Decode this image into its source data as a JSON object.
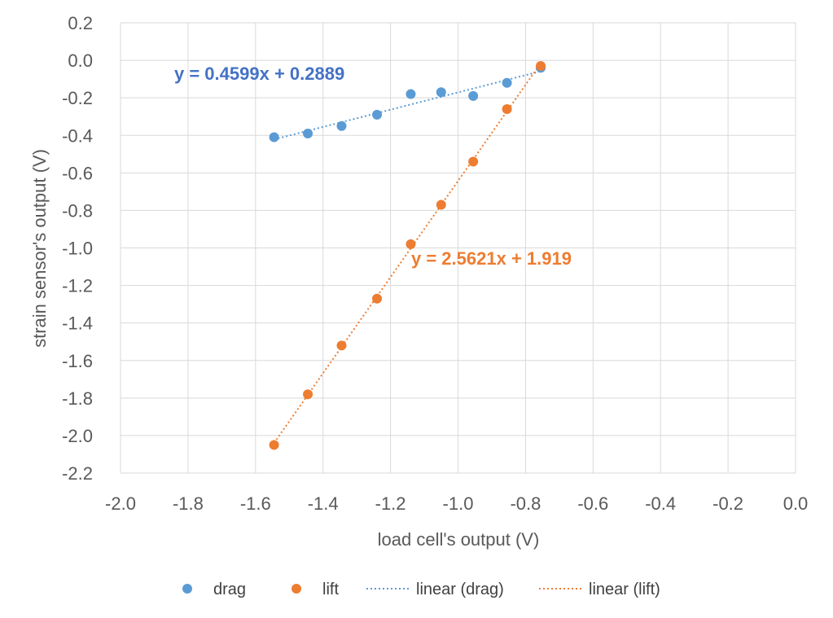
{
  "chart_data": {
    "type": "scatter",
    "title": "",
    "xlabel": "load cell's output (V)",
    "ylabel": "strain sensor's output (V)",
    "xlim": [
      -2.0,
      0.0
    ],
    "ylim": [
      -2.2,
      0.2
    ],
    "x_ticks": [
      "-2.0",
      "-1.8",
      "-1.6",
      "-1.4",
      "-1.2",
      "-1.0",
      "-0.8",
      "-0.6",
      "-0.4",
      "-0.2",
      "0.0"
    ],
    "y_ticks": [
      "0.2",
      "0.0",
      "-0.2",
      "-0.4",
      "-0.6",
      "-0.8",
      "-1.0",
      "-1.2",
      "-1.4",
      "-1.6",
      "-1.8",
      "-2.0",
      "-2.2"
    ],
    "grid": true,
    "legend_position": "bottom",
    "series": [
      {
        "name": "drag",
        "color": "#5B9BD5",
        "x": [
          -1.545,
          -1.445,
          -1.345,
          -1.24,
          -1.14,
          -1.05,
          -0.955,
          -0.855,
          -0.755
        ],
        "y": [
          -0.41,
          -0.39,
          -0.35,
          -0.29,
          -0.18,
          -0.17,
          -0.19,
          -0.12,
          -0.04
        ]
      },
      {
        "name": "lift",
        "color": "#ED7D31",
        "x": [
          -1.545,
          -1.445,
          -1.345,
          -1.24,
          -1.14,
          -1.05,
          -0.955,
          -0.855,
          -0.755
        ],
        "y": [
          -2.05,
          -1.78,
          -1.52,
          -1.27,
          -0.98,
          -0.77,
          -0.54,
          -0.26,
          -0.03
        ]
      }
    ],
    "trendlines": [
      {
        "name": "linear (drag)",
        "color": "#5B9BD5",
        "slope": 0.4599,
        "intercept": 0.2889,
        "x_range": [
          -1.545,
          -0.755
        ],
        "equation": "y = 0.4599x + 0.2889"
      },
      {
        "name": "linear (lift)",
        "color": "#ED7D31",
        "slope": 2.5621,
        "intercept": 1.919,
        "x_range": [
          -1.545,
          -0.755
        ],
        "equation": "y = 2.5621x + 1.919"
      }
    ]
  }
}
